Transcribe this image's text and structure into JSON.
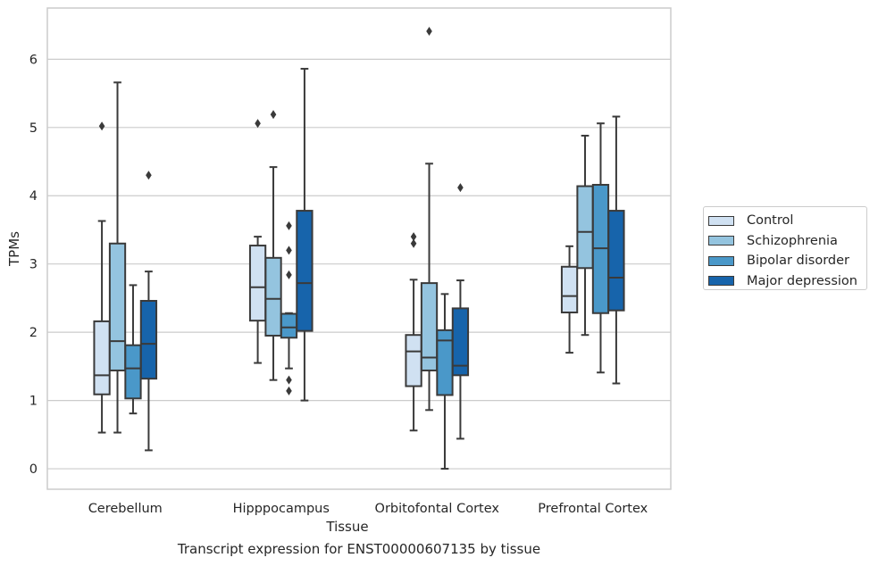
{
  "caption": "Transcript expression for ENST00000607135 by tissue",
  "chart_data": {
    "type": "boxplot",
    "title": "",
    "xlabel": "Tissue",
    "ylabel": "TPMs",
    "ylim": [
      -0.3,
      6.75
    ],
    "yticks": [
      0,
      1,
      2,
      3,
      4,
      5,
      6
    ],
    "grid": true,
    "legend_position": "right",
    "categories": [
      "Cerebellum",
      "Hipppocampus",
      "Orbitofontal Cortex",
      "Prefrontal Cortex"
    ],
    "series": [
      {
        "name": "Control",
        "color": "#d0e1f2",
        "boxes": [
          {
            "whislo": 0.53,
            "q1": 1.09,
            "med": 1.37,
            "q3": 2.16,
            "whishi": 3.63,
            "fliers": [
              5.02
            ]
          },
          {
            "whislo": 1.55,
            "q1": 2.17,
            "med": 2.66,
            "q3": 3.27,
            "whishi": 3.4,
            "fliers": [
              5.06
            ]
          },
          {
            "whislo": 0.56,
            "q1": 1.21,
            "med": 1.72,
            "q3": 1.96,
            "whishi": 2.77,
            "fliers": [
              3.3,
              3.4
            ]
          },
          {
            "whislo": 1.7,
            "q1": 2.29,
            "med": 2.53,
            "q3": 2.96,
            "whishi": 3.26,
            "fliers": []
          }
        ]
      },
      {
        "name": "Schizophrenia",
        "color": "#94c4df",
        "boxes": [
          {
            "whislo": 0.53,
            "q1": 1.44,
            "med": 1.87,
            "q3": 3.3,
            "whishi": 5.66,
            "fliers": []
          },
          {
            "whislo": 1.3,
            "q1": 1.95,
            "med": 2.49,
            "q3": 3.09,
            "whishi": 4.42,
            "fliers": [
              5.19
            ]
          },
          {
            "whislo": 0.86,
            "q1": 1.44,
            "med": 1.63,
            "q3": 2.72,
            "whishi": 4.47,
            "fliers": [
              6.41
            ]
          },
          {
            "whislo": 1.96,
            "q1": 2.94,
            "med": 3.47,
            "q3": 4.14,
            "whishi": 4.88,
            "fliers": []
          }
        ]
      },
      {
        "name": "Bipolar disorder",
        "color": "#4a98c9",
        "boxes": [
          {
            "whislo": 0.81,
            "q1": 1.03,
            "med": 1.47,
            "q3": 1.81,
            "whishi": 2.69,
            "fliers": []
          },
          {
            "whislo": 1.47,
            "q1": 1.92,
            "med": 2.07,
            "q3": 2.27,
            "whishi": 2.28,
            "fliers": [
              1.14,
              1.3,
              2.84,
              3.2,
              3.56
            ]
          },
          {
            "whislo": 0.0,
            "q1": 1.08,
            "med": 1.88,
            "q3": 2.03,
            "whishi": 2.56,
            "fliers": []
          },
          {
            "whislo": 1.41,
            "q1": 2.28,
            "med": 3.23,
            "q3": 4.16,
            "whishi": 5.06,
            "fliers": []
          }
        ]
      },
      {
        "name": "Major depression",
        "color": "#1764ab",
        "boxes": [
          {
            "whislo": 0.27,
            "q1": 1.32,
            "med": 1.83,
            "q3": 2.46,
            "whishi": 2.89,
            "fliers": [
              4.3
            ]
          },
          {
            "whislo": 1.0,
            "q1": 2.02,
            "med": 2.72,
            "q3": 3.78,
            "whishi": 5.86,
            "fliers": []
          },
          {
            "whislo": 0.44,
            "q1": 1.37,
            "med": 1.51,
            "q3": 2.35,
            "whishi": 2.76,
            "fliers": [
              4.12
            ]
          },
          {
            "whislo": 1.25,
            "q1": 2.32,
            "med": 2.8,
            "q3": 3.78,
            "whishi": 5.16,
            "fliers": []
          }
        ]
      }
    ]
  }
}
